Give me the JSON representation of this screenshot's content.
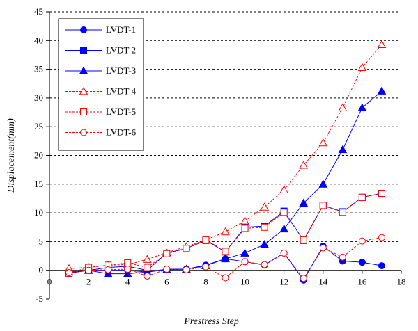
{
  "chart_data": {
    "type": "line",
    "xlabel": "Prestress Step",
    "ylabel": "Displacement(mm)",
    "xlim": [
      0,
      18
    ],
    "ylim": [
      -5,
      45
    ],
    "xticks": [
      0,
      2,
      4,
      6,
      8,
      10,
      12,
      14,
      16,
      18
    ],
    "yticks": [
      -5,
      0,
      5,
      10,
      15,
      20,
      25,
      30,
      35,
      40,
      45
    ],
    "grid": "horizontal dashed",
    "legend_position": "top-left",
    "x": [
      1,
      2,
      3,
      4,
      5,
      6,
      7,
      8,
      9,
      10,
      11,
      12,
      13,
      14,
      15,
      16,
      17
    ],
    "series": [
      {
        "name": "LVDT-1",
        "marker": "filled-circle",
        "line": "solid",
        "color": "#0000ff",
        "values": [
          -0.3,
          0.0,
          0.0,
          0.0,
          -0.3,
          0.2,
          0.2,
          0.9,
          2.0,
          1.5,
          0.9,
          3.0,
          -1.7,
          4.2,
          1.6,
          1.4,
          0.8
        ]
      },
      {
        "name": "LVDT-2",
        "marker": "filled-square",
        "line": "solid",
        "color": "#0000ff",
        "values": [
          -0.5,
          0.0,
          0.5,
          0.7,
          0.0,
          3.0,
          3.8,
          5.2,
          3.2,
          7.5,
          7.7,
          10.3,
          5.2,
          11.3,
          10.2,
          12.7,
          13.4
        ]
      },
      {
        "name": "LVDT-3",
        "marker": "filled-triangle",
        "line": "solid",
        "color": "#0000ff",
        "values": [
          -0.3,
          0.0,
          -0.6,
          -0.6,
          -0.3,
          0.1,
          0.2,
          0.8,
          2.0,
          3.0,
          4.5,
          7.2,
          11.7,
          15.0,
          21.0,
          28.3,
          31.2
        ]
      },
      {
        "name": "LVDT-4",
        "marker": "open-triangle",
        "line": "dashed",
        "color": "#ff0000",
        "values": [
          0.3,
          0.5,
          0.9,
          1.0,
          1.9,
          3.1,
          4.1,
          5.3,
          6.7,
          8.6,
          11.0,
          14.0,
          18.3,
          22.2,
          28.3,
          35.3,
          39.3
        ]
      },
      {
        "name": "LVDT-5",
        "marker": "open-square",
        "line": "dashed",
        "color": "#ff0000",
        "values": [
          -0.5,
          0.5,
          0.9,
          1.3,
          0.5,
          2.9,
          3.8,
          5.3,
          3.3,
          7.3,
          7.5,
          10.1,
          5.3,
          11.3,
          10.1,
          12.7,
          13.4
        ]
      },
      {
        "name": "LVDT-6",
        "marker": "open-circle",
        "line": "dashed",
        "color": "#ff0000",
        "values": [
          -0.4,
          0.0,
          0.1,
          0.2,
          -1.0,
          0.2,
          0.1,
          0.6,
          -1.3,
          1.5,
          1.0,
          3.0,
          -1.4,
          3.9,
          2.3,
          5.1,
          5.7
        ]
      }
    ]
  }
}
